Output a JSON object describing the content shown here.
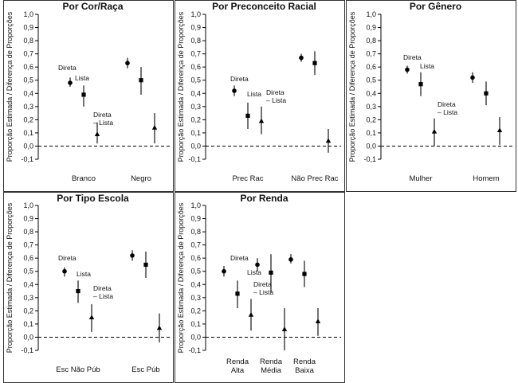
{
  "ylabel": "Proporção Estimada / Diferença de Proporções",
  "chart_data": [
    {
      "type": "scatter",
      "title": "Por Cor/Raça",
      "ylim": [
        -0.1,
        1.0
      ],
      "yticks": [
        "-0,1",
        "0,0",
        "0,1",
        "0,2",
        "0,3",
        "0,4",
        "0,5",
        "0,6",
        "0,7",
        "0,8",
        "0,9",
        "1,0"
      ],
      "groups": [
        {
          "label": [
            "Branco"
          ],
          "points": [
            {
              "est": 0.48,
              "lo": 0.45,
              "hi": 0.52,
              "label": "Direta"
            },
            {
              "est": 0.39,
              "lo": 0.3,
              "hi": 0.46,
              "label": "Lista"
            },
            {
              "est": 0.09,
              "lo": 0.02,
              "hi": 0.18,
              "label": "Direta – Lista"
            }
          ]
        },
        {
          "label": [
            "Negro"
          ],
          "points": [
            {
              "est": 0.63,
              "lo": 0.59,
              "hi": 0.67
            },
            {
              "est": 0.5,
              "lo": 0.39,
              "hi": 0.6
            },
            {
              "est": 0.14,
              "lo": 0.02,
              "hi": 0.25
            }
          ]
        }
      ]
    },
    {
      "type": "scatter",
      "title": "Por Preconceito Racial",
      "ylim": [
        -0.1,
        1.0
      ],
      "yticks": [
        "-0,1",
        "0,0",
        "0,1",
        "0,2",
        "0,3",
        "0,4",
        "0,5",
        "0,6",
        "0,7",
        "0,8",
        "0,9",
        "1,0"
      ],
      "groups": [
        {
          "label": [
            "Prec Rac"
          ],
          "points": [
            {
              "est": 0.42,
              "lo": 0.38,
              "hi": 0.46,
              "label": "Direta"
            },
            {
              "est": 0.23,
              "lo": 0.13,
              "hi": 0.33,
              "label": "Lista"
            },
            {
              "est": 0.19,
              "lo": 0.09,
              "hi": 0.3,
              "label": "Direta – Lista"
            }
          ]
        },
        {
          "label": [
            "Não Prec Rac"
          ],
          "points": [
            {
              "est": 0.67,
              "lo": 0.64,
              "hi": 0.7
            },
            {
              "est": 0.63,
              "lo": 0.54,
              "hi": 0.72
            },
            {
              "est": 0.04,
              "lo": -0.05,
              "hi": 0.13
            }
          ]
        }
      ]
    },
    {
      "type": "scatter",
      "title": "Por Gênero",
      "ylim": [
        -0.1,
        1.0
      ],
      "yticks": [
        "-0,1",
        "0,0",
        "0,1",
        "0,2",
        "0,3",
        "0,4",
        "0,5",
        "0,6",
        "0,7",
        "0,8",
        "0,9",
        "1,0"
      ],
      "groups": [
        {
          "label": [
            "Mulher"
          ],
          "points": [
            {
              "est": 0.58,
              "lo": 0.55,
              "hi": 0.61,
              "label": "Direta"
            },
            {
              "est": 0.47,
              "lo": 0.38,
              "hi": 0.56,
              "label": "Lista"
            },
            {
              "est": 0.11,
              "lo": 0.0,
              "hi": 0.21,
              "label": "Direta – Lista"
            }
          ]
        },
        {
          "label": [
            "Homem"
          ],
          "points": [
            {
              "est": 0.52,
              "lo": 0.48,
              "hi": 0.56
            },
            {
              "est": 0.4,
              "lo": 0.31,
              "hi": 0.49
            },
            {
              "est": 0.12,
              "lo": 0.01,
              "hi": 0.22
            }
          ]
        }
      ]
    },
    {
      "type": "scatter",
      "title": "Por Tipo Escola",
      "ylim": [
        -0.1,
        1.0
      ],
      "yticks": [
        "-0,1",
        "0,0",
        "0,1",
        "0,2",
        "0,3",
        "0,4",
        "0,5",
        "0,6",
        "0,7",
        "0,8",
        "0,9",
        "1,0"
      ],
      "groups": [
        {
          "label": [
            "Esc Não Púb"
          ],
          "points": [
            {
              "est": 0.5,
              "lo": 0.46,
              "hi": 0.53,
              "label": "Direta"
            },
            {
              "est": 0.35,
              "lo": 0.26,
              "hi": 0.43,
              "label": "Lista"
            },
            {
              "est": 0.15,
              "lo": 0.04,
              "hi": 0.25,
              "label": "Direta – Lista"
            }
          ]
        },
        {
          "label": [
            "Esc Púb"
          ],
          "points": [
            {
              "est": 0.62,
              "lo": 0.58,
              "hi": 0.66
            },
            {
              "est": 0.55,
              "lo": 0.45,
              "hi": 0.65
            },
            {
              "est": 0.07,
              "lo": -0.04,
              "hi": 0.18
            }
          ]
        }
      ]
    },
    {
      "type": "scatter",
      "title": "Por Renda",
      "ylim": [
        -0.1,
        1.0
      ],
      "yticks": [
        "-0,1",
        "0,0",
        "0,1",
        "0,2",
        "0,3",
        "0,4",
        "0,5",
        "0,6",
        "0,7",
        "0,8",
        "0,9",
        "1,0"
      ],
      "groups": [
        {
          "label": [
            "Renda",
            "Alta"
          ],
          "points": [
            {
              "est": 0.5,
              "lo": 0.46,
              "hi": 0.54,
              "label": "Direta"
            },
            {
              "est": 0.33,
              "lo": 0.22,
              "hi": 0.43,
              "label": "Lista"
            },
            {
              "est": 0.17,
              "lo": 0.05,
              "hi": 0.29,
              "label": "Direta – Lista"
            }
          ]
        },
        {
          "label": [
            "Renda",
            "Média"
          ],
          "points": [
            {
              "est": 0.55,
              "lo": 0.5,
              "hi": 0.6
            },
            {
              "est": 0.49,
              "lo": 0.34,
              "hi": 0.63
            },
            {
              "est": 0.06,
              "lo": -0.1,
              "hi": 0.22
            }
          ]
        },
        {
          "label": [
            "Renda",
            "Baixa"
          ],
          "points": [
            {
              "est": 0.59,
              "lo": 0.56,
              "hi": 0.63
            },
            {
              "est": 0.48,
              "lo": 0.38,
              "hi": 0.58
            },
            {
              "est": 0.12,
              "lo": 0.01,
              "hi": 0.22
            }
          ]
        }
      ]
    }
  ]
}
